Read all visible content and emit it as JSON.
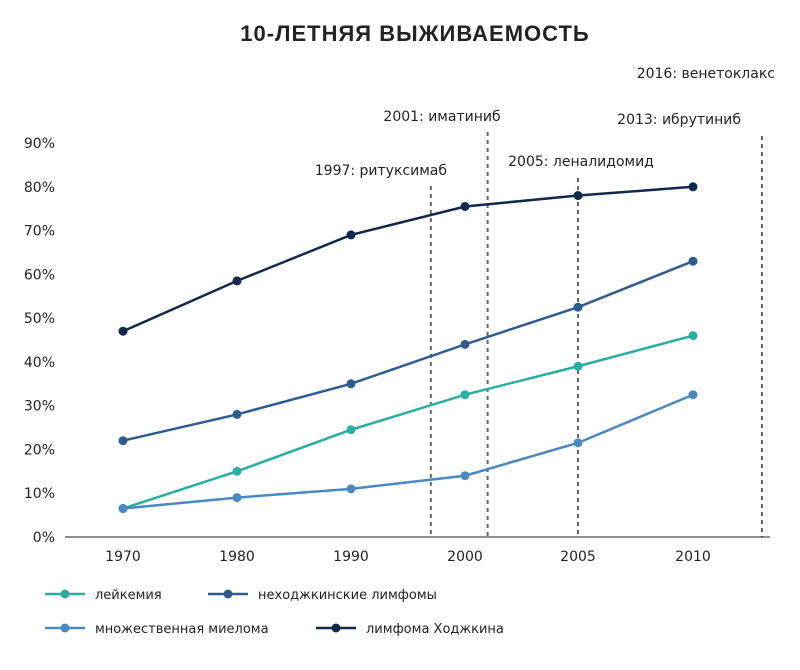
{
  "chart_data": {
    "type": "line",
    "title": "10-ЛЕТНЯЯ ВЫЖИВАЕМОСТЬ",
    "xlabel": "",
    "ylabel": "",
    "categories": [
      "1970",
      "1980",
      "1990",
      "2000",
      "2005",
      "2010"
    ],
    "ylim": [
      0,
      90
    ],
    "yticks": [
      "0%",
      "10%",
      "20%",
      "30%",
      "40%",
      "50%",
      "60%",
      "70%",
      "80%",
      "90%"
    ],
    "grid": false,
    "legend_position": "bottom",
    "series": [
      {
        "name": "лимфома Ходжкина",
        "color": "#13294b",
        "values": [
          47,
          58.5,
          69,
          75.5,
          78,
          80
        ]
      },
      {
        "name": "неходжкинские лимфомы",
        "color": "#2e5c91",
        "values": [
          22,
          28,
          35,
          44,
          52.5,
          63
        ]
      },
      {
        "name": "лейкемия",
        "color": "#2bada1",
        "values": [
          6.5,
          15,
          24.5,
          32.5,
          39,
          46
        ]
      },
      {
        "name": "множественная миелома",
        "color": "#4a88c0",
        "values": [
          6.5,
          9,
          11,
          14,
          21.5,
          32.5
        ]
      }
    ],
    "annotations": [
      {
        "year": 1997,
        "label": "1997: ритуксимаб"
      },
      {
        "year": 2001,
        "label": "2001: иматиниб"
      },
      {
        "year": 2005,
        "label": "2005: леналидомид"
      },
      {
        "year": 2013,
        "label": "2013: ибрутиниб"
      },
      {
        "year": 2016,
        "label": "2016: венетоклакс"
      }
    ],
    "legend": [
      {
        "name": "лейкемия",
        "color": "#2bada1"
      },
      {
        "name": "неходжкинские лимфомы",
        "color": "#2e5c91"
      },
      {
        "name": "множественная миелома",
        "color": "#4a88c0"
      },
      {
        "name": "лимфома Ходжкина",
        "color": "#13294b"
      }
    ]
  }
}
